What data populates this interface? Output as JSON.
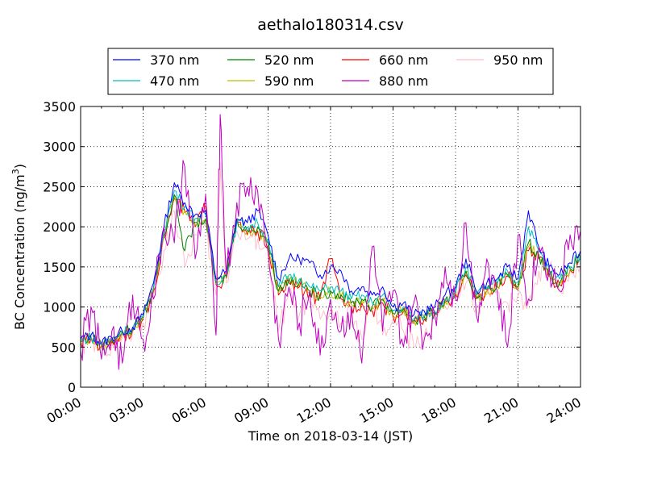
{
  "chart_data": {
    "type": "line",
    "title": "aethalo180314.csv",
    "xlabel": "Time on 2018-03-14 (JST)",
    "ylabel_main": "BC Concentration (ng/m",
    "ylabel_sup": "3",
    "ylabel_end": ")",
    "xlim_hours": [
      0,
      24
    ],
    "ylim": [
      0,
      3500
    ],
    "grid": true,
    "legend": "top-center",
    "x_ticks": [
      {
        "value": 0,
        "label": "00:00"
      },
      {
        "value": 3,
        "label": "03:00"
      },
      {
        "value": 6,
        "label": "06:00"
      },
      {
        "value": 9,
        "label": "09:00"
      },
      {
        "value": 12,
        "label": "12:00"
      },
      {
        "value": 15,
        "label": "15:00"
      },
      {
        "value": 18,
        "label": "18:00"
      },
      {
        "value": 21,
        "label": "21:00"
      },
      {
        "value": 24,
        "label": "24:00"
      }
    ],
    "y_ticks": [
      {
        "value": 0,
        "label": "0"
      },
      {
        "value": 500,
        "label": "500"
      },
      {
        "value": 1000,
        "label": "1000"
      },
      {
        "value": 1500,
        "label": "1500"
      },
      {
        "value": 2000,
        "label": "2000"
      },
      {
        "value": 2500,
        "label": "2500"
      },
      {
        "value": 3000,
        "label": "3000"
      },
      {
        "value": 3500,
        "label": "3500"
      }
    ],
    "series": [
      {
        "name": "370 nm",
        "color": "#0000ff",
        "x_hours": [
          0,
          0.5,
          1,
          1.5,
          2,
          2.5,
          3,
          3.5,
          4,
          4.5,
          5,
          5.5,
          6,
          6.5,
          7,
          7.5,
          8,
          8.5,
          9,
          9.5,
          10,
          10.5,
          11,
          11.5,
          12,
          12.5,
          13,
          13.5,
          14,
          14.5,
          15,
          15.5,
          16,
          16.5,
          17,
          17.5,
          18,
          18.5,
          19,
          19.5,
          20,
          20.5,
          21,
          21.5,
          22,
          22.5,
          23,
          23.5,
          24
        ],
        "values": [
          600,
          650,
          550,
          620,
          700,
          750,
          900,
          1300,
          2000,
          2550,
          2300,
          2150,
          2200,
          1350,
          1450,
          2100,
          2050,
          2200,
          1900,
          1350,
          1600,
          1600,
          1550,
          1400,
          1500,
          1450,
          1200,
          1250,
          1150,
          1250,
          1000,
          1050,
          900,
          950,
          1000,
          1150,
          1250,
          1600,
          1200,
          1300,
          1350,
          1500,
          1350,
          2200,
          1750,
          1500,
          1400,
          1550,
          1700
        ]
      },
      {
        "name": "470 nm",
        "color": "#00bfbf",
        "x_hours": [
          0,
          0.5,
          1,
          1.5,
          2,
          2.5,
          3,
          3.5,
          4,
          4.5,
          5,
          5.5,
          6,
          6.5,
          7,
          7.5,
          8,
          8.5,
          9,
          9.5,
          10,
          10.5,
          11,
          11.5,
          12,
          12.5,
          13,
          13.5,
          14,
          14.5,
          15,
          15.5,
          16,
          16.5,
          17,
          17.5,
          18,
          18.5,
          19,
          19.5,
          20,
          20.5,
          21,
          21.5,
          22,
          22.5,
          23,
          23.5,
          24
        ],
        "values": [
          580,
          630,
          540,
          600,
          690,
          740,
          880,
          1250,
          1950,
          2450,
          2250,
          2100,
          2150,
          1320,
          1400,
          2050,
          2000,
          2050,
          1850,
          1250,
          1400,
          1350,
          1250,
          1200,
          1250,
          1200,
          1100,
          1150,
          1050,
          1150,
          950,
          1000,
          850,
          900,
          950,
          1100,
          1200,
          1500,
          1150,
          1250,
          1300,
          1450,
          1300,
          2000,
          1700,
          1450,
          1350,
          1500,
          1650
        ]
      },
      {
        "name": "520 nm",
        "color": "#008000",
        "x_hours": [
          0,
          0.5,
          1,
          1.5,
          2,
          2.5,
          3,
          3.5,
          4,
          4.5,
          5,
          5.5,
          6,
          6.5,
          7,
          7.5,
          8,
          8.5,
          9,
          9.5,
          10,
          10.5,
          11,
          11.5,
          12,
          12.5,
          13,
          13.5,
          14,
          14.5,
          15,
          15.5,
          16,
          16.5,
          17,
          17.5,
          18,
          18.5,
          19,
          19.5,
          20,
          20.5,
          21,
          21.5,
          22,
          22.5,
          23,
          23.5,
          24
        ],
        "values": [
          570,
          620,
          530,
          590,
          680,
          730,
          870,
          1230,
          1900,
          2400,
          1700,
          2050,
          2100,
          1300,
          1380,
          2100,
          1950,
          2000,
          1800,
          1200,
          1350,
          1300,
          1200,
          1150,
          1200,
          1150,
          1050,
          1100,
          1000,
          1100,
          920,
          980,
          830,
          880,
          930,
          1080,
          1180,
          1450,
          1120,
          1220,
          1280,
          1400,
          1250,
          1800,
          1650,
          1400,
          1300,
          1480,
          1620
        ]
      },
      {
        "name": "590 nm",
        "color": "#bfbf00",
        "x_hours": [
          0,
          0.5,
          1,
          1.5,
          2,
          2.5,
          3,
          3.5,
          4,
          4.5,
          5,
          5.5,
          6,
          6.5,
          7,
          7.5,
          8,
          8.5,
          9,
          9.5,
          10,
          10.5,
          11,
          11.5,
          12,
          12.5,
          13,
          13.5,
          14,
          14.5,
          15,
          15.5,
          16,
          16.5,
          17,
          17.5,
          18,
          18.5,
          19,
          19.5,
          20,
          20.5,
          21,
          21.5,
          22,
          22.5,
          23,
          23.5,
          24
        ],
        "values": [
          560,
          610,
          520,
          580,
          670,
          720,
          860,
          1210,
          1880,
          2380,
          2200,
          2020,
          2080,
          1290,
          1370,
          2080,
          1930,
          1980,
          1780,
          1180,
          1330,
          1280,
          1180,
          1130,
          1180,
          1130,
          1030,
          1080,
          980,
          1080,
          900,
          960,
          820,
          870,
          920,
          1070,
          1170,
          1430,
          1110,
          1210,
          1270,
          1390,
          1240,
          1750,
          1630,
          1390,
          1290,
          1470,
          1610
        ]
      },
      {
        "name": "660 nm",
        "color": "#ff0000",
        "x_hours": [
          0,
          0.5,
          1,
          1.5,
          2,
          2.5,
          3,
          3.5,
          4,
          4.5,
          5,
          5.5,
          6,
          6.5,
          7,
          7.5,
          8,
          8.5,
          9,
          9.5,
          10,
          10.5,
          11,
          11.5,
          12,
          12.5,
          13,
          13.5,
          14,
          14.5,
          15,
          15.5,
          16,
          16.5,
          17,
          17.5,
          18,
          18.5,
          19,
          19.5,
          20,
          20.5,
          21,
          21.5,
          22,
          22.5,
          23,
          23.5,
          24
        ],
        "values": [
          550,
          600,
          510,
          570,
          660,
          710,
          850,
          1200,
          1860,
          2350,
          2180,
          2000,
          2250,
          1280,
          1360,
          2060,
          1900,
          1950,
          1760,
          1150,
          1300,
          1250,
          1150,
          1100,
          1600,
          1100,
          1000,
          1050,
          950,
          1050,
          880,
          940,
          800,
          850,
          900,
          1050,
          1150,
          1400,
          1100,
          1200,
          1250,
          1380,
          1220,
          1700,
          1600,
          1380,
          1280,
          1460,
          1600
        ]
      },
      {
        "name": "880 nm",
        "color": "#bf00bf",
        "x_hours": [
          0,
          0.5,
          1,
          1.5,
          2,
          2.5,
          3,
          3.5,
          4,
          4.5,
          5,
          5.5,
          6,
          6.5,
          6.7,
          7,
          7.5,
          8,
          8.5,
          9,
          9.5,
          10,
          10.5,
          11,
          11.5,
          12,
          12.5,
          13,
          13.5,
          14,
          14.5,
          15,
          15.5,
          16,
          16.5,
          17,
          17.5,
          18,
          18.5,
          19,
          19.5,
          20,
          20.5,
          21,
          21.5,
          22,
          22.5,
          23,
          23.5,
          24
        ],
        "values": [
          450,
          1000,
          350,
          700,
          300,
          1150,
          600,
          1100,
          2000,
          1800,
          2750,
          1600,
          2400,
          650,
          3400,
          1400,
          2300,
          2500,
          2450,
          1700,
          600,
          1250,
          800,
          1200,
          400,
          1100,
          700,
          1000,
          300,
          1750,
          700,
          1200,
          500,
          1050,
          600,
          900,
          1500,
          1100,
          2050,
          900,
          1600,
          1200,
          500,
          1900,
          1100,
          1750,
          1500,
          1200,
          1900,
          1950
        ]
      },
      {
        "name": "950 nm",
        "color": "#ffc0cb",
        "x_hours": [
          0,
          0.5,
          1,
          1.5,
          2,
          2.5,
          3,
          3.5,
          4,
          4.5,
          5,
          5.5,
          6,
          6.5,
          6.7,
          7,
          7.5,
          8,
          8.5,
          9,
          9.5,
          10,
          10.5,
          11,
          11.5,
          12,
          12.5,
          13,
          13.5,
          14,
          14.5,
          15,
          15.5,
          16,
          16.5,
          17,
          17.5,
          18,
          18.5,
          19,
          19.5,
          20,
          20.5,
          21,
          21.5,
          22,
          22.5,
          23,
          23.5,
          24
        ],
        "values": [
          520,
          560,
          480,
          540,
          620,
          680,
          800,
          1150,
          1700,
          2200,
          1500,
          1900,
          2000,
          1150,
          2800,
          1300,
          1950,
          1850,
          1850,
          1650,
          700,
          1150,
          900,
          1050,
          850,
          950,
          800,
          900,
          600,
          1000,
          650,
          850,
          700,
          500,
          650,
          850,
          1000,
          1100,
          1300,
          1000,
          1150,
          1200,
          1050,
          1150,
          1050,
          1450,
          1500,
          1200,
          1450,
          1500
        ]
      }
    ]
  }
}
